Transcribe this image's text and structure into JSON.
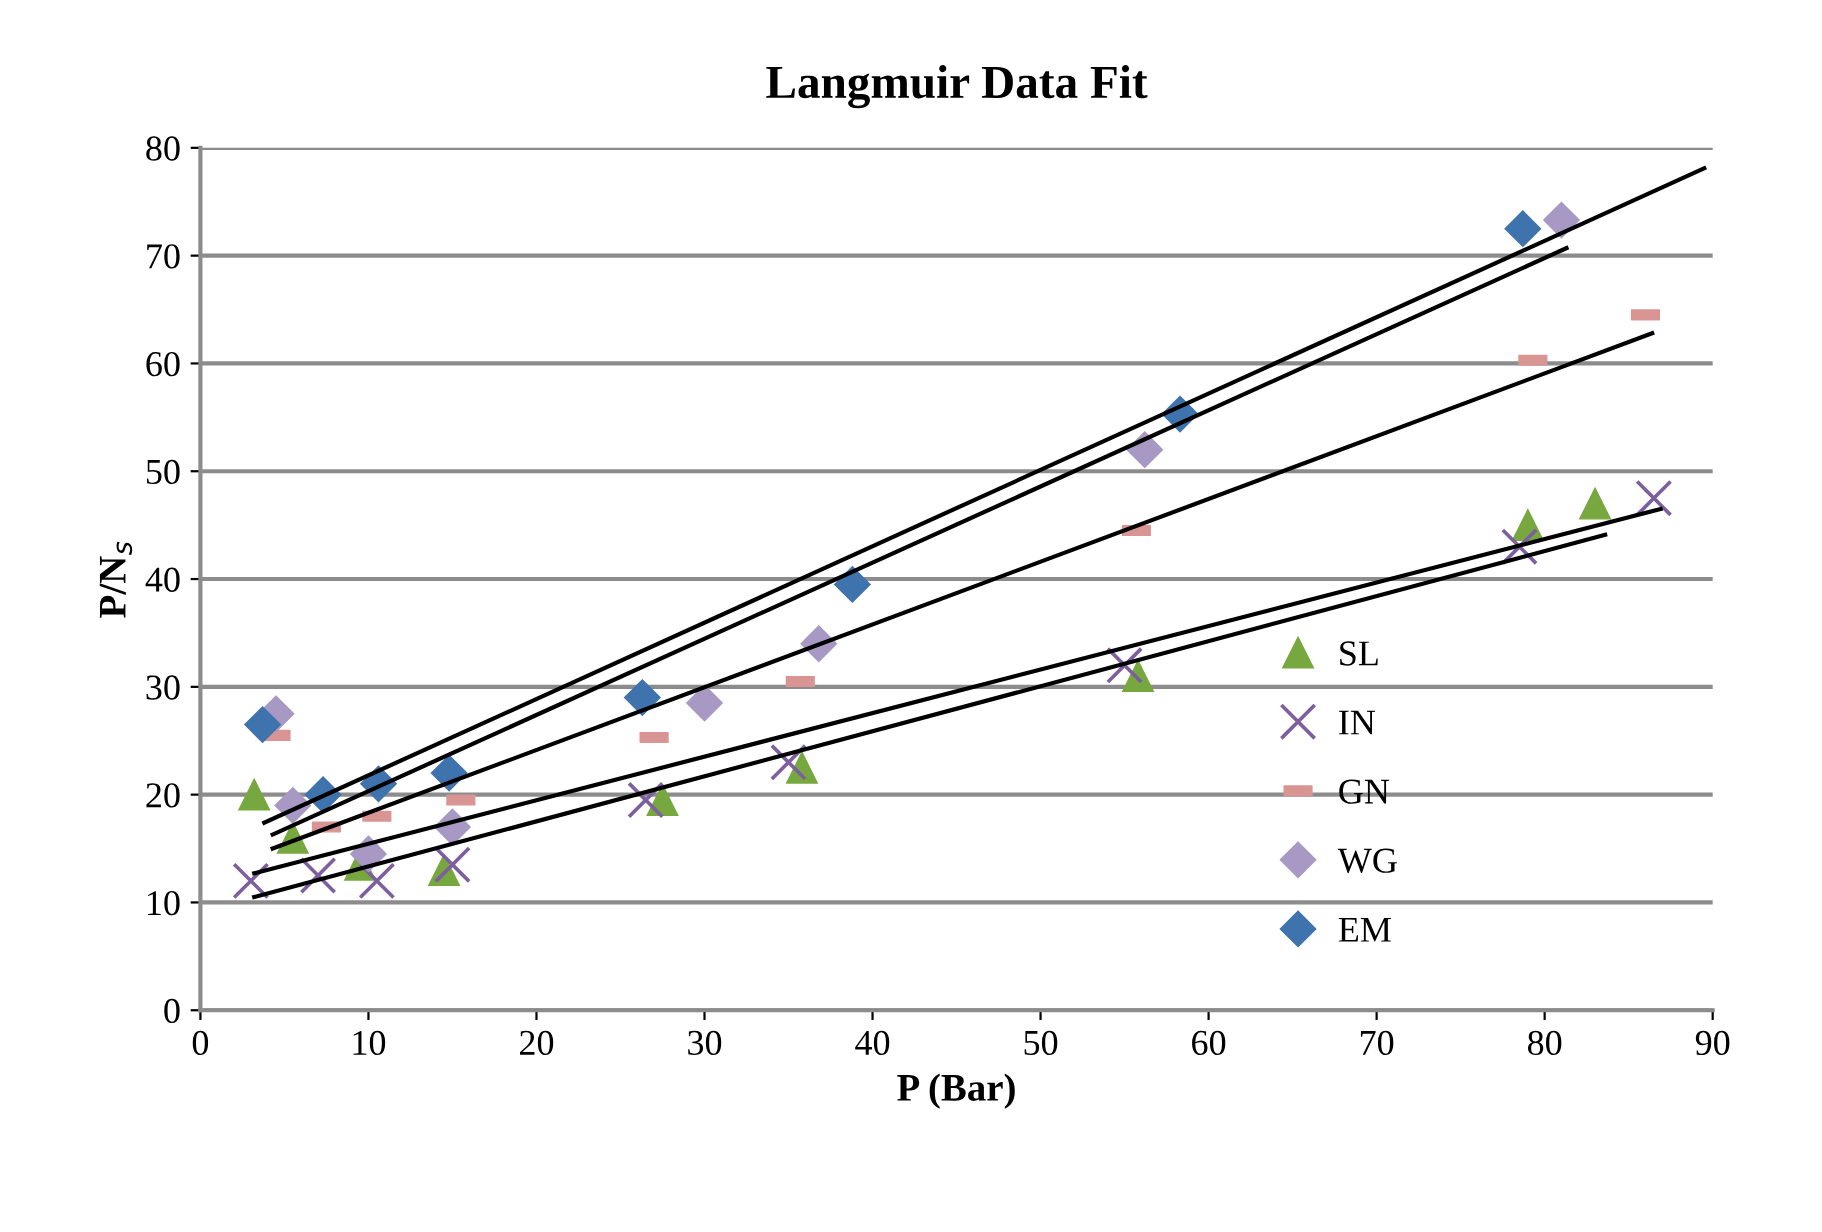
{
  "chart_data": {
    "type": "scatter",
    "title": "Langmuir Data Fit",
    "xlabel": "P (Bar)",
    "ylabel": "P/N$_{s}$",
    "xlim": [
      0,
      90
    ],
    "xticks": [
      0,
      10,
      20,
      30,
      40,
      50,
      60,
      70,
      80,
      90
    ],
    "ylim": [
      0,
      80
    ],
    "yticks": [
      0,
      10,
      20,
      30,
      40,
      50,
      60,
      70,
      80
    ],
    "grid": "y",
    "legend": "right",
    "series": [
      {
        "name": "SL",
        "color": "#77a83f",
        "marker": "triangle",
        "x": [
          3.2,
          5.5,
          9.5,
          14.5,
          27.5,
          35.8,
          55.8,
          79,
          83
        ],
        "values": [
          20,
          16,
          13.5,
          13,
          19.5,
          22.5,
          31,
          45,
          47
        ]
      },
      {
        "name": "IN",
        "color": "#7d5fa0",
        "marker": "cross",
        "x": [
          3,
          7,
          10.5,
          15,
          26.5,
          35,
          55,
          78.5,
          86.5
        ],
        "values": [
          12,
          12.5,
          12,
          13.5,
          19.5,
          23,
          32,
          43,
          47.5
        ]
      },
      {
        "name": "GN",
        "color": "#d99594",
        "marker": "square",
        "x": [
          4.5,
          7.5,
          10.5,
          15.5,
          27,
          35.7,
          55.7,
          79.3,
          86
        ],
        "values": [
          25.5,
          17,
          18,
          19.5,
          25.3,
          30.5,
          44.5,
          60.3,
          64.5
        ]
      },
      {
        "name": "WG",
        "color": "#a798c4",
        "marker": "diamond",
        "x": [
          4.5,
          5.5,
          10,
          15,
          30,
          36.8,
          56.2,
          81
        ],
        "values": [
          27.5,
          19,
          14.5,
          17,
          28.5,
          34,
          52,
          73.3
        ]
      },
      {
        "name": "EM",
        "color": "#3f73ae",
        "marker": "diamond",
        "x": [
          3.7,
          7.3,
          10.6,
          14.8,
          26.3,
          38.8,
          58.3,
          78.7
        ],
        "values": [
          26.5,
          20,
          21,
          22,
          29,
          39.5,
          55.3,
          72.5
        ]
      },
      {
        "type": "line",
        "color": "#000000",
        "x": [
          3.8,
          89.5
        ],
        "values": [
          17.4,
          78.1
        ]
      },
      {
        "type": "line",
        "color": "#000000",
        "x": [
          4.3,
          81.3
        ],
        "values": [
          16.3,
          70.7
        ]
      },
      {
        "type": "line",
        "color": "#000000",
        "x": [
          4.3,
          86.4
        ],
        "values": [
          15,
          62.8
        ]
      },
      {
        "type": "line",
        "color": "#000000",
        "x": [
          3.2,
          86.9
        ],
        "values": [
          12.7,
          46.5
        ]
      },
      {
        "type": "line",
        "color": "#000000",
        "x": [
          3.2,
          83.6
        ],
        "values": [
          10.5,
          44.1
        ]
      }
    ]
  }
}
